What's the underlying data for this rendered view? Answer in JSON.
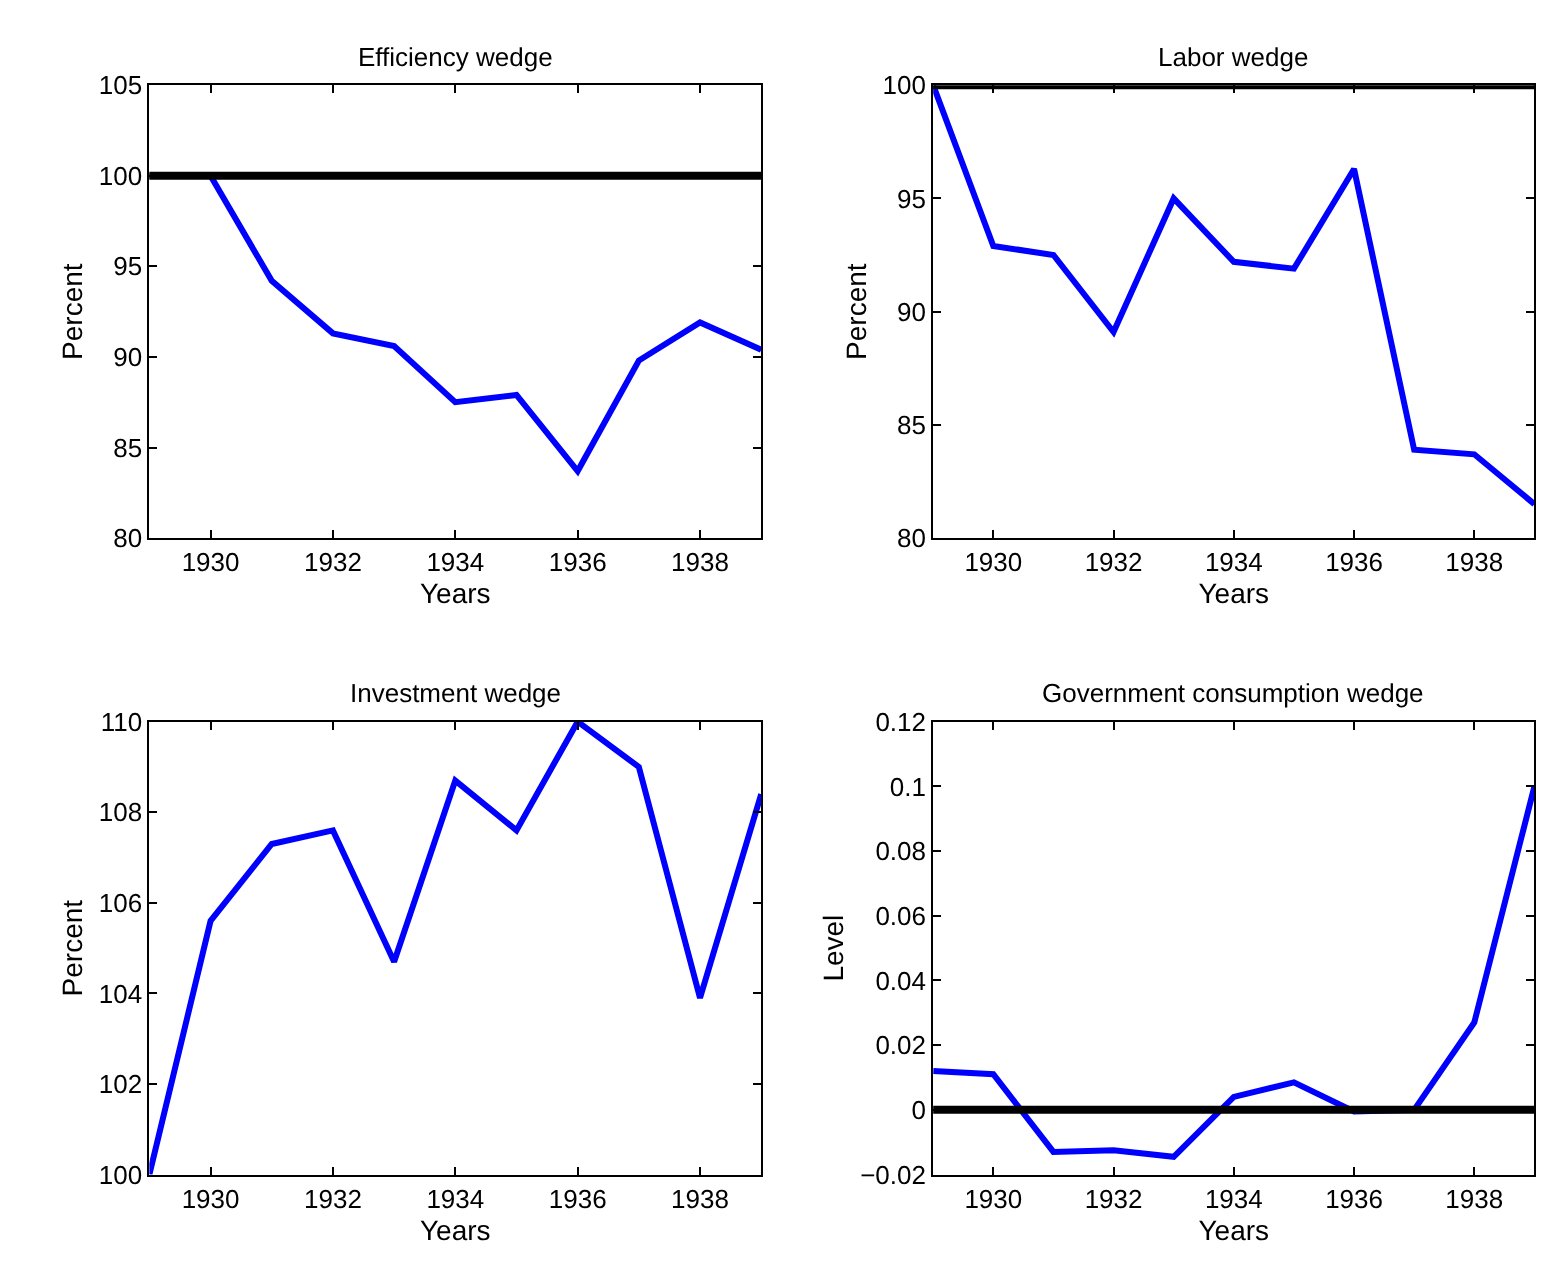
{
  "chart_data": [
    {
      "type": "line",
      "title": "Efficiency wedge",
      "xlabel": "Years",
      "ylabel": "Percent",
      "x": [
        1929,
        1930,
        1931,
        1932,
        1933,
        1934,
        1935,
        1936,
        1937,
        1938,
        1939
      ],
      "series": [
        {
          "color": "#0000ff",
          "values": [
            100,
            100,
            94.2,
            91.3,
            90.6,
            87.5,
            87.9,
            83.7,
            89.8,
            91.9,
            90.4
          ]
        }
      ],
      "xlim": [
        1929,
        1939
      ],
      "xticks": [
        1930,
        1932,
        1934,
        1936,
        1938
      ],
      "ylim": [
        80,
        105
      ],
      "yticks": [
        80,
        85,
        90,
        95,
        100,
        105
      ],
      "ref_lines": [
        {
          "axis": "y",
          "value": 100,
          "color": "#000000"
        }
      ],
      "grid": false
    },
    {
      "type": "line",
      "title": "Labor wedge",
      "xlabel": "Years",
      "ylabel": "Percent",
      "x": [
        1929,
        1930,
        1931,
        1932,
        1933,
        1934,
        1935,
        1936,
        1937,
        1938,
        1939
      ],
      "series": [
        {
          "color": "#0000ff",
          "values": [
            100,
            92.9,
            92.5,
            89.1,
            95.0,
            92.2,
            91.9,
            96.3,
            83.9,
            83.7,
            81.5
          ]
        }
      ],
      "xlim": [
        1929,
        1939
      ],
      "xticks": [
        1930,
        1932,
        1934,
        1936,
        1938
      ],
      "ylim": [
        80,
        100
      ],
      "yticks": [
        80,
        85,
        90,
        95,
        100
      ],
      "ref_lines": [
        {
          "axis": "y",
          "value": 100,
          "color": "#000000"
        }
      ],
      "grid": false
    },
    {
      "type": "line",
      "title": "Investment wedge",
      "xlabel": "Years",
      "ylabel": "Percent",
      "x": [
        1929,
        1930,
        1931,
        1932,
        1933,
        1934,
        1935,
        1936,
        1937,
        1938,
        1939
      ],
      "series": [
        {
          "color": "#0000ff",
          "values": [
            100,
            105.6,
            107.3,
            107.6,
            104.7,
            108.7,
            107.6,
            110.0,
            109.0,
            103.9,
            108.4
          ]
        }
      ],
      "xlim": [
        1929,
        1939
      ],
      "xticks": [
        1930,
        1932,
        1934,
        1936,
        1938
      ],
      "ylim": [
        100,
        110
      ],
      "yticks": [
        100,
        102,
        104,
        106,
        108,
        110
      ],
      "grid": false
    },
    {
      "type": "line",
      "title": "Government consumption wedge",
      "xlabel": "Years",
      "ylabel": "Level",
      "x": [
        1929,
        1930,
        1931,
        1932,
        1933,
        1934,
        1935,
        1936,
        1937,
        1938,
        1939
      ],
      "series": [
        {
          "color": "#0000ff",
          "values": [
            0.012,
            0.011,
            -0.013,
            -0.0125,
            -0.0145,
            0.004,
            0.0085,
            -0.0005,
            0.0,
            0.027,
            0.1
          ]
        }
      ],
      "xlim": [
        1929,
        1939
      ],
      "xticks": [
        1930,
        1932,
        1934,
        1936,
        1938
      ],
      "ylim": [
        -0.02,
        0.12
      ],
      "yticks": [
        {
          "value": -0.02,
          "label": "−0.02"
        },
        0,
        0.02,
        0.04,
        0.06,
        0.08,
        0.1,
        0.12
      ],
      "ref_lines": [
        {
          "axis": "y",
          "value": 0,
          "color": "#000000"
        }
      ],
      "grid": false
    }
  ]
}
